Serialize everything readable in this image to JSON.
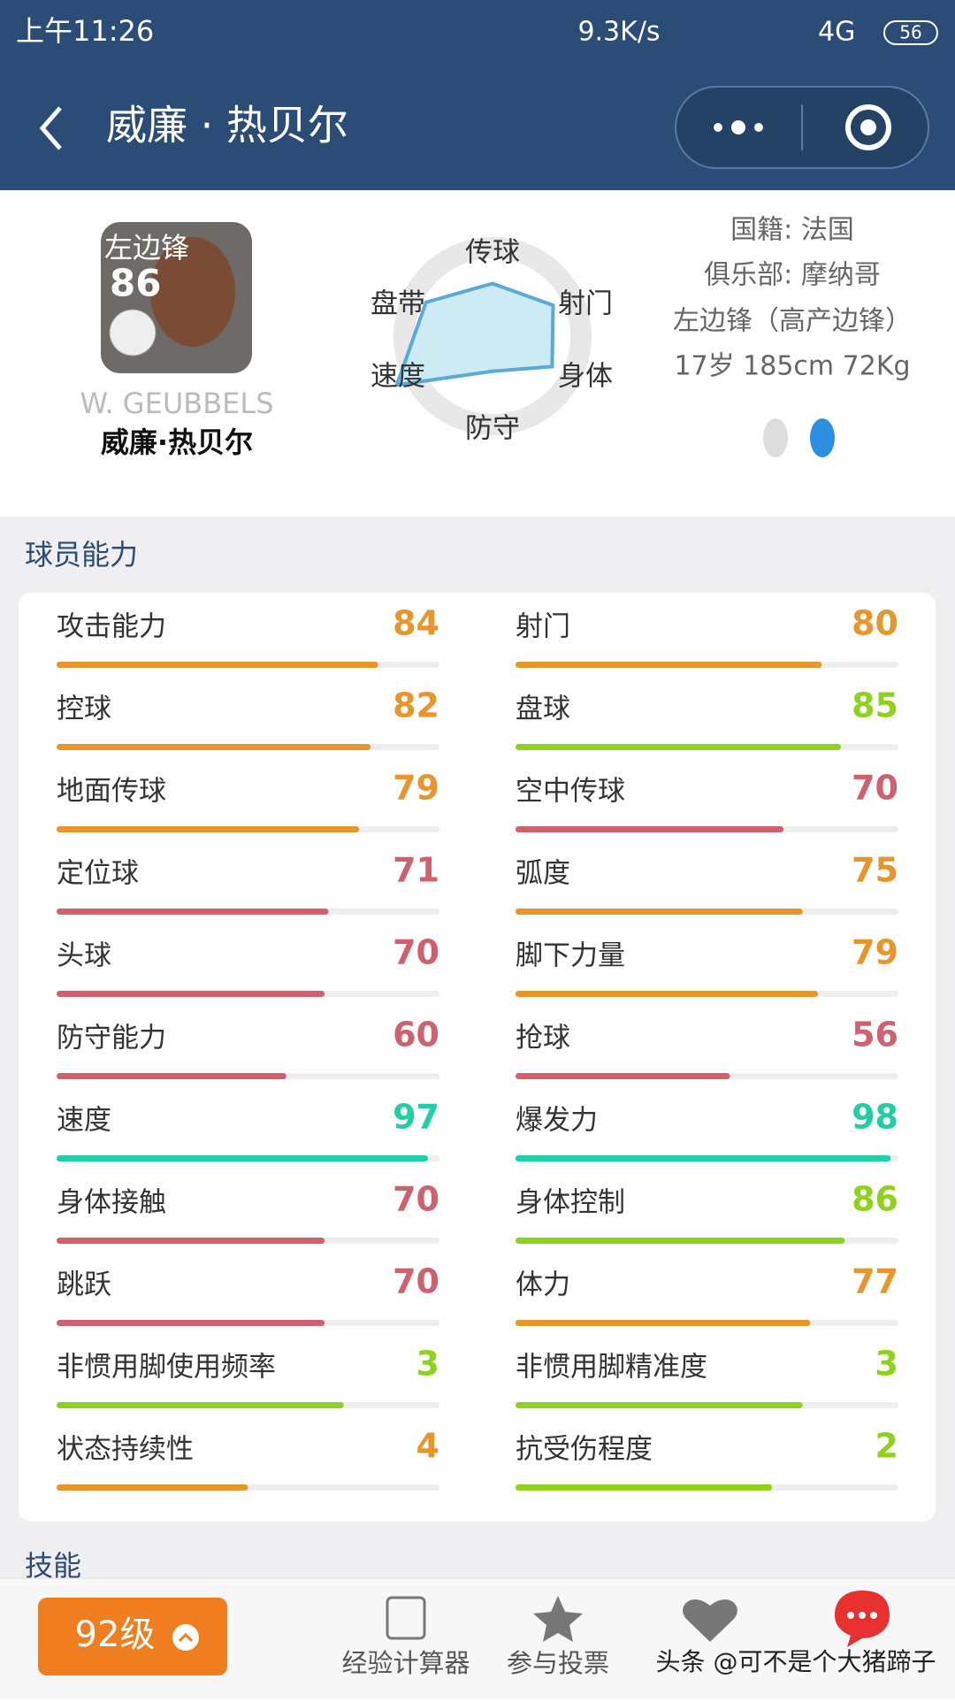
{
  "status_bar": {
    "time": "上午11:26",
    "speed": "9.3K/s",
    "network": "4G",
    "battery": "56"
  },
  "header": {
    "title": "威廉 · 热贝尔"
  },
  "profile": {
    "position": "左边锋",
    "rating": 86,
    "name_en": "W. GEUBBELS",
    "name": "威廉·热贝尔",
    "nationality": "国籍: 法国",
    "club": "俱乐部: 摩纳哥",
    "role": "左边锋（高产边锋）",
    "physical": "17岁 185cm 72Kg"
  },
  "radar": {
    "axes": [
      {
        "label": "传球",
        "value": 48
      },
      {
        "label": "射门",
        "value": 62
      },
      {
        "label": "身体",
        "value": 61
      },
      {
        "label": "防守",
        "value": 32
      },
      {
        "label": "速度",
        "value": 98
      },
      {
        "label": "盘带",
        "value": 68
      }
    ]
  },
  "section_title": "球员能力",
  "stats": {
    "left": [
      {
        "label": "攻击能力",
        "value": 84,
        "color": "#e8962a"
      },
      {
        "label": "控球",
        "value": 82,
        "color": "#e8962a"
      },
      {
        "label": "地面传球",
        "value": 79,
        "color": "#e8962a"
      },
      {
        "label": "定位球",
        "value": 71,
        "color": "#d0606e"
      },
      {
        "label": "头球",
        "value": 70,
        "color": "#d0606e"
      },
      {
        "label": "防守能力",
        "value": 60,
        "color": "#d0606e"
      },
      {
        "label": "速度",
        "value": 97,
        "color": "#1fcfa6"
      },
      {
        "label": "身体接触",
        "value": 70,
        "color": "#d0606e"
      },
      {
        "label": "跳跃",
        "value": 70,
        "color": "#d0606e"
      },
      {
        "label": "非惯用脚使用频率",
        "value": 3,
        "bar": 75,
        "color": "#8fd21e"
      },
      {
        "label": "状态持续性",
        "value": 4,
        "bar": 50,
        "color": "#e8962a"
      }
    ],
    "right": [
      {
        "label": "射门",
        "value": 80,
        "color": "#e8962a"
      },
      {
        "label": "盘球",
        "value": 85,
        "color": "#8fd21e"
      },
      {
        "label": "空中传球",
        "value": 70,
        "color": "#d0606e"
      },
      {
        "label": "弧度",
        "value": 75,
        "color": "#e8962a"
      },
      {
        "label": "脚下力量",
        "value": 79,
        "color": "#e8962a"
      },
      {
        "label": "抢球",
        "value": 56,
        "color": "#d0606e"
      },
      {
        "label": "爆发力",
        "value": 98,
        "color": "#1fcfa6"
      },
      {
        "label": "身体控制",
        "value": 86,
        "color": "#8fd21e"
      },
      {
        "label": "体力",
        "value": 77,
        "color": "#e8962a"
      },
      {
        "label": "非惯用脚精准度",
        "value": 3,
        "bar": 75,
        "color": "#8fd21e"
      },
      {
        "label": "抗受伤程度",
        "value": 2,
        "bar": 67,
        "color": "#8fd21e"
      }
    ]
  },
  "skills_title": "技能",
  "footer": {
    "level": "92级",
    "tabs": [
      "经验计算器",
      "参与投票"
    ],
    "watermark": "头条 @可不是个大猪蹄子"
  }
}
